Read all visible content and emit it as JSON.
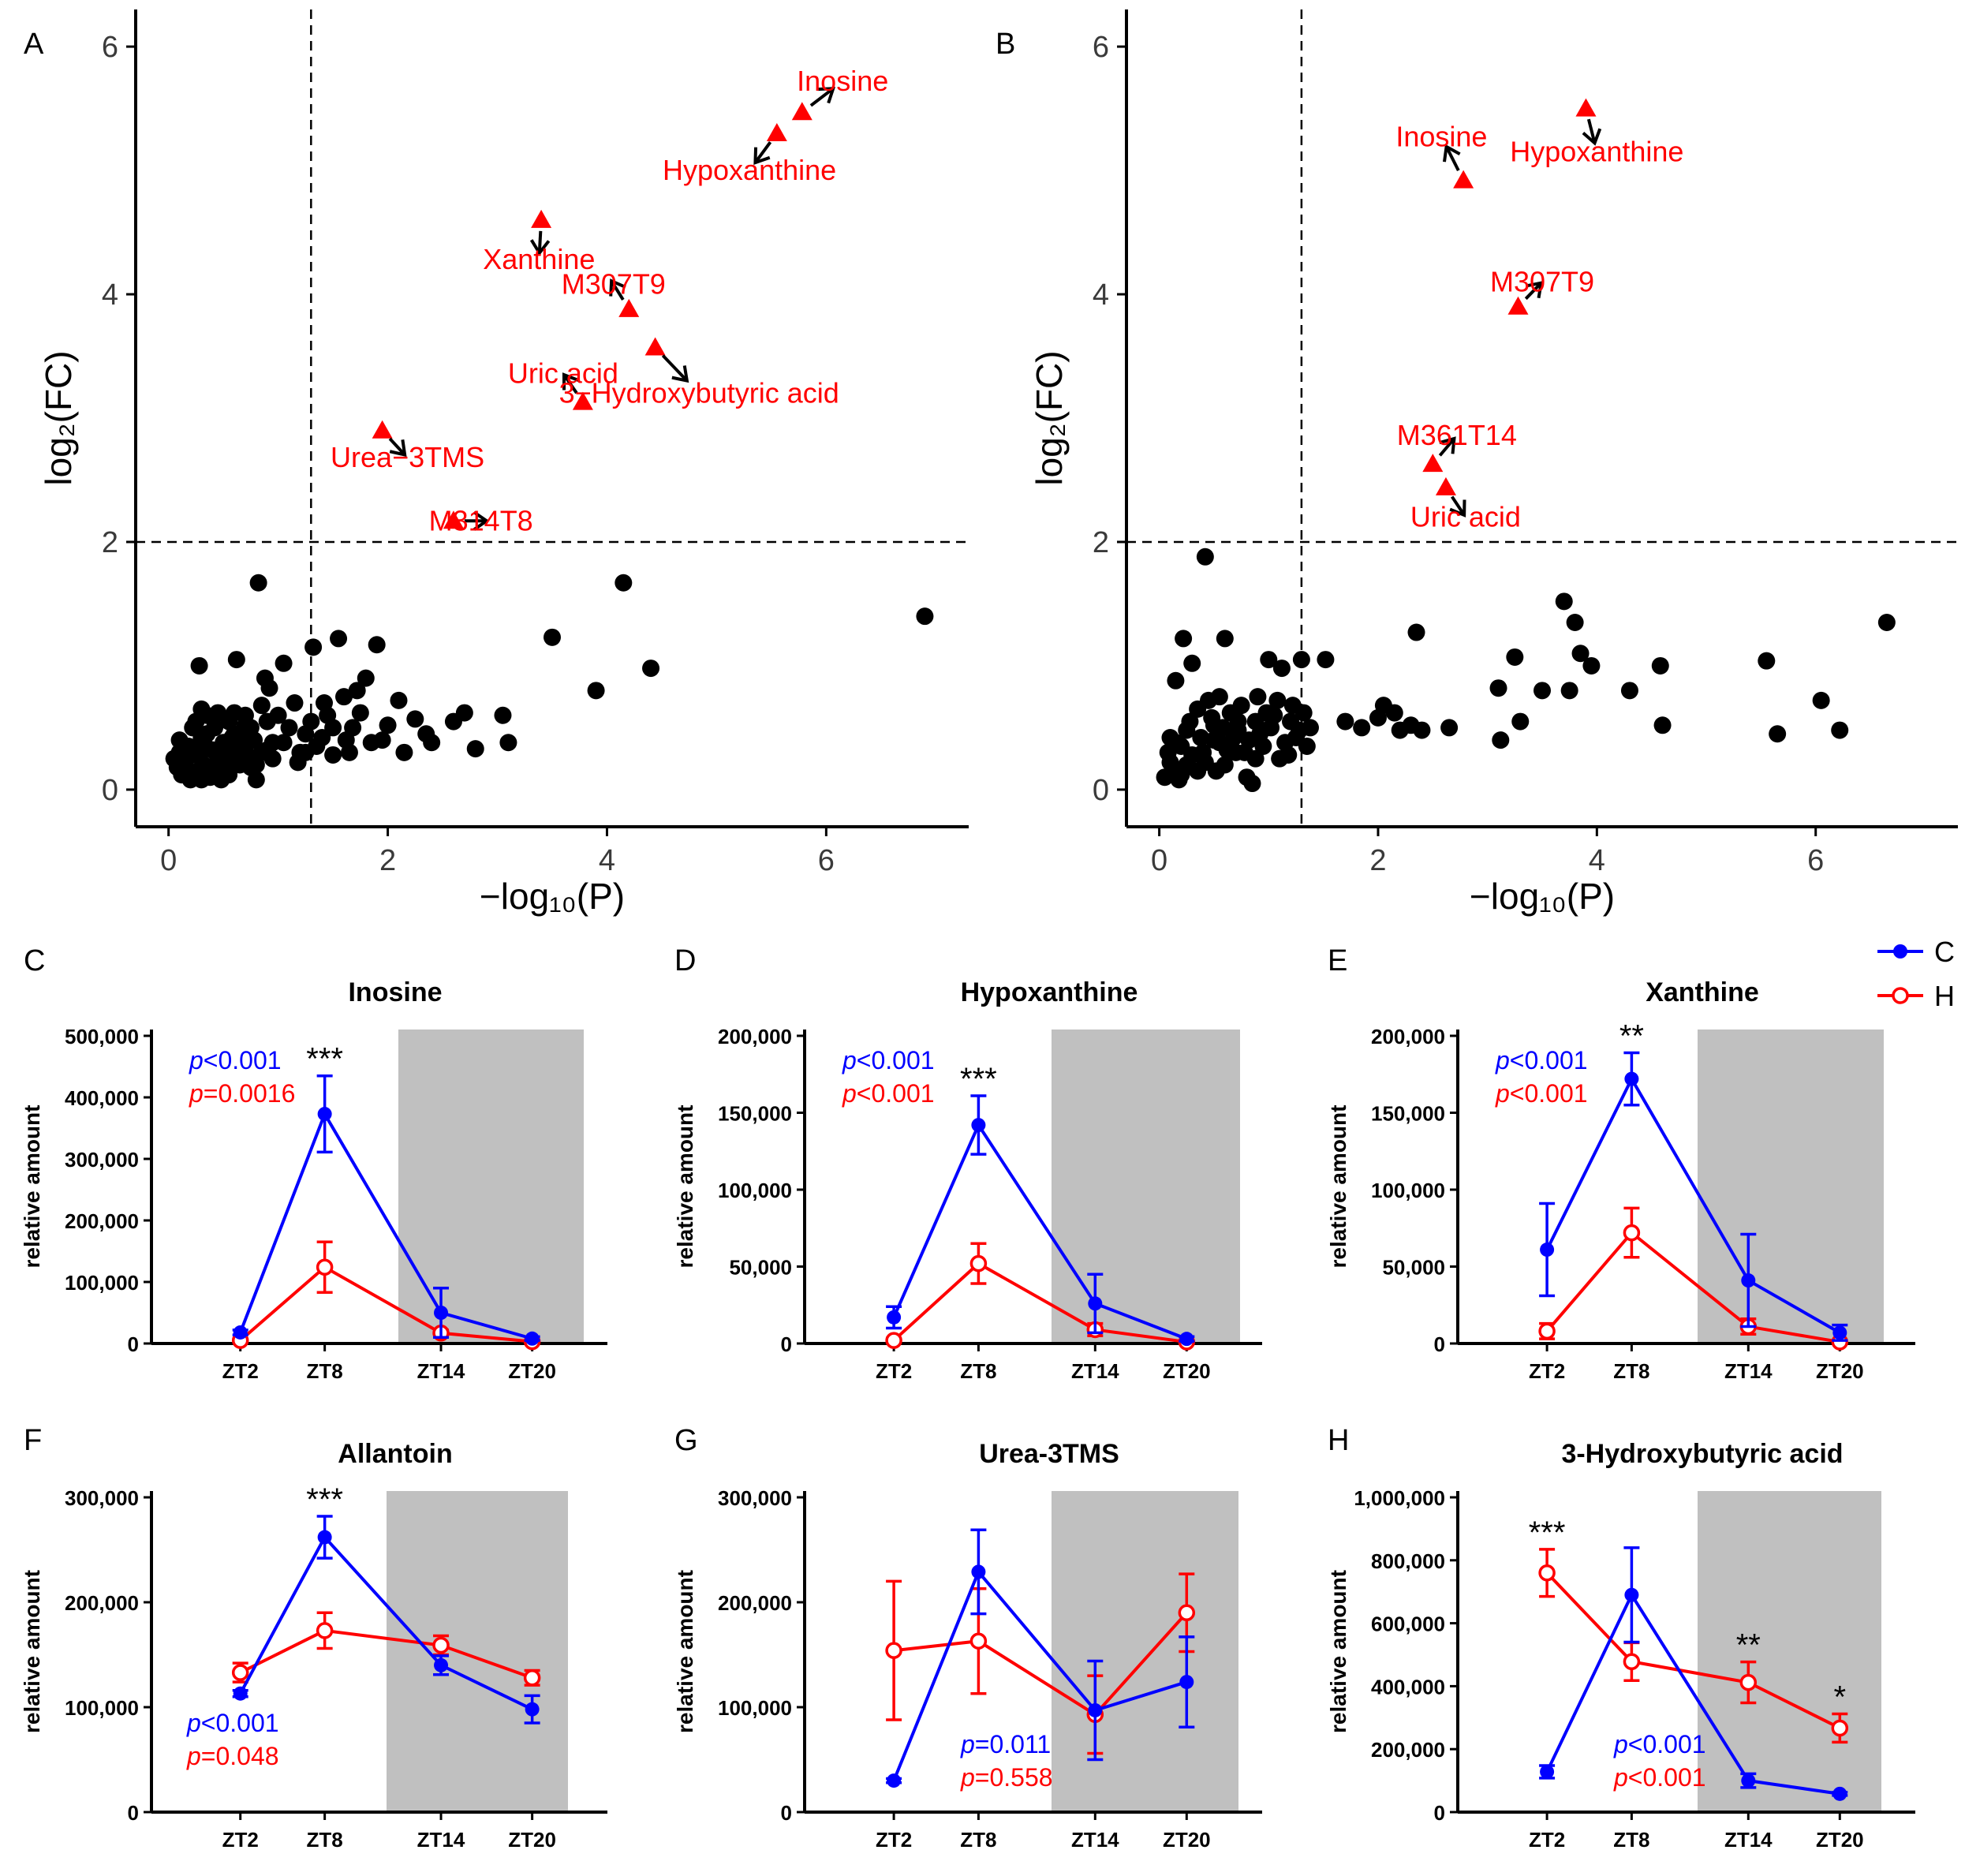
{
  "colors": {
    "C": "#0000ff",
    "H": "#ff0000",
    "point": "#000000",
    "sig": "#ff0000",
    "shade": "#c0c0c0"
  },
  "legend": {
    "entries": [
      {
        "key": "C",
        "label": "C"
      },
      {
        "key": "H",
        "label": "H"
      }
    ]
  },
  "volcano_axis": {
    "xlabel": "−log₁₀(P)",
    "ylabel": "log₂(FC)",
    "xticks": [
      "0",
      "2",
      "4",
      "6"
    ],
    "yticks": [
      "0",
      "2",
      "4",
      "6"
    ]
  },
  "chart_data": [
    {
      "panel": "A",
      "type": "scatter",
      "xlabel": "−log₁₀(P)",
      "ylabel": "log₂(FC)",
      "xlim": [
        -0.3,
        7.3
      ],
      "ylim": [
        -0.3,
        6.3
      ],
      "hline": 2,
      "vline": 1.3,
      "significant": [
        {
          "label": "Inosine",
          "x": 5.78,
          "y": 5.47,
          "lx": 6.15,
          "ly": 5.72
        },
        {
          "label": "Hypoxanthine",
          "x": 5.55,
          "y": 5.3,
          "lx": 5.3,
          "ly": 5.0
        },
        {
          "label": "Xanthine",
          "x": 3.4,
          "y": 4.6,
          "lx": 3.38,
          "ly": 4.28
        },
        {
          "label": "M307T9",
          "x": 4.2,
          "y": 3.88,
          "lx": 4.06,
          "ly": 4.08
        },
        {
          "label": "Uric acid",
          "x": 3.78,
          "y": 3.13,
          "lx": 3.6,
          "ly": 3.36
        },
        {
          "label": "3−Hydroxybutyric acid",
          "x": 4.44,
          "y": 3.57,
          "lx": 4.84,
          "ly": 3.2
        },
        {
          "label": "Urea−3TMS",
          "x": 1.95,
          "y": 2.9,
          "lx": 2.18,
          "ly": 2.68
        },
        {
          "label": "M314T8",
          "x": 2.6,
          "y": 2.17,
          "lx": 2.85,
          "ly": 2.17
        }
      ],
      "points": [
        [
          0.05,
          0.25
        ],
        [
          0.08,
          0.18
        ],
        [
          0.1,
          0.3
        ],
        [
          0.12,
          0.12
        ],
        [
          0.15,
          0.22
        ],
        [
          0.18,
          0.35
        ],
        [
          0.2,
          0.08
        ],
        [
          0.22,
          0.28
        ],
        [
          0.25,
          0.55
        ],
        [
          0.27,
          0.15
        ],
        [
          0.28,
          1.0
        ],
        [
          0.3,
          0.42
        ],
        [
          0.32,
          0.2
        ],
        [
          0.35,
          0.6
        ],
        [
          0.38,
          0.1
        ],
        [
          0.4,
          0.32
        ],
        [
          0.42,
          0.5
        ],
        [
          0.45,
          0.25
        ],
        [
          0.48,
          0.08
        ],
        [
          0.5,
          0.38
        ],
        [
          0.52,
          0.22
        ],
        [
          0.55,
          0.55
        ],
        [
          0.58,
          0.3
        ],
        [
          0.6,
          0.45
        ],
        [
          0.62,
          1.05
        ],
        [
          0.65,
          0.2
        ],
        [
          0.68,
          0.35
        ],
        [
          0.7,
          0.6
        ],
        [
          0.72,
          0.28
        ],
        [
          0.75,
          0.5
        ],
        [
          0.78,
          0.4
        ],
        [
          0.8,
          0.08
        ],
        [
          0.82,
          1.67
        ],
        [
          0.85,
          0.3
        ],
        [
          0.88,
          0.9
        ],
        [
          0.9,
          0.55
        ],
        [
          0.92,
          0.82
        ],
        [
          0.95,
          0.38
        ],
        [
          1.0,
          0.6
        ],
        [
          1.05,
          1.02
        ],
        [
          1.1,
          0.5
        ],
        [
          1.15,
          0.7
        ],
        [
          1.2,
          0.3
        ],
        [
          1.25,
          0.45
        ],
        [
          1.3,
          0.55
        ],
        [
          1.32,
          1.15
        ],
        [
          1.35,
          0.35
        ],
        [
          1.4,
          0.42
        ],
        [
          1.45,
          0.6
        ],
        [
          1.5,
          0.5
        ],
        [
          1.55,
          1.22
        ],
        [
          1.6,
          0.75
        ],
        [
          1.62,
          0.4
        ],
        [
          1.68,
          0.5
        ],
        [
          1.72,
          0.8
        ],
        [
          1.75,
          0.62
        ],
        [
          1.8,
          0.9
        ],
        [
          1.85,
          0.38
        ],
        [
          1.9,
          1.17
        ],
        [
          2.0,
          0.52
        ],
        [
          2.1,
          0.72
        ],
        [
          2.15,
          0.3
        ],
        [
          2.25,
          0.57
        ],
        [
          2.35,
          0.45
        ],
        [
          2.4,
          0.38
        ],
        [
          2.6,
          0.55
        ],
        [
          2.7,
          0.62
        ],
        [
          2.8,
          0.33
        ],
        [
          3.05,
          0.6
        ],
        [
          3.1,
          0.38
        ],
        [
          3.5,
          1.23
        ],
        [
          3.9,
          0.8
        ],
        [
          4.15,
          1.67
        ],
        [
          4.4,
          0.98
        ],
        [
          6.9,
          1.4
        ],
        [
          0.1,
          0.4
        ],
        [
          0.14,
          0.28
        ],
        [
          0.3,
          0.65
        ],
        [
          0.42,
          0.15
        ],
        [
          0.55,
          0.12
        ],
        [
          0.65,
          0.42
        ],
        [
          0.75,
          0.18
        ],
        [
          0.95,
          0.25
        ],
        [
          1.18,
          0.22
        ],
        [
          1.5,
          0.28
        ],
        [
          1.65,
          0.3
        ],
        [
          1.95,
          0.4
        ],
        [
          0.6,
          0.62
        ],
        [
          0.7,
          0.52
        ],
        [
          0.85,
          0.68
        ],
        [
          0.22,
          0.5
        ],
        [
          0.35,
          0.45
        ],
        [
          0.5,
          0.3
        ],
        [
          0.45,
          0.62
        ],
        [
          0.8,
          0.2
        ],
        [
          1.05,
          0.38
        ],
        [
          1.25,
          0.3
        ],
        [
          1.42,
          0.7
        ],
        [
          0.18,
          0.12
        ],
        [
          0.3,
          0.08
        ],
        [
          0.28,
          0.28
        ],
        [
          0.32,
          0.38
        ],
        [
          0.58,
          0.42
        ],
        [
          0.68,
          0.25
        ],
        [
          0.9,
          0.32
        ]
      ]
    },
    {
      "panel": "B",
      "type": "scatter",
      "xlabel": "−log₁₀(P)",
      "ylabel": "log₂(FC)",
      "xlim": [
        -0.3,
        7.3
      ],
      "ylim": [
        -0.3,
        6.3
      ],
      "hline": 2,
      "vline": 1.3,
      "significant": [
        {
          "label": "Hypoxanthine",
          "x": 3.9,
          "y": 5.5,
          "lx": 4.0,
          "ly": 5.15
        },
        {
          "label": "Inosine",
          "x": 2.78,
          "y": 4.92,
          "lx": 2.58,
          "ly": 5.27
        },
        {
          "label": "M307T9",
          "x": 3.28,
          "y": 3.9,
          "lx": 3.5,
          "ly": 4.1
        },
        {
          "label": "M361T14",
          "x": 2.5,
          "y": 2.63,
          "lx": 2.72,
          "ly": 2.86
        },
        {
          "label": "Uric acid",
          "x": 2.62,
          "y": 2.44,
          "lx": 2.8,
          "ly": 2.2
        }
      ],
      "points": [
        [
          0.05,
          0.1
        ],
        [
          0.08,
          0.3
        ],
        [
          0.1,
          0.42
        ],
        [
          0.12,
          0.15
        ],
        [
          0.15,
          0.88
        ],
        [
          0.18,
          0.08
        ],
        [
          0.2,
          0.35
        ],
        [
          0.22,
          1.22
        ],
        [
          0.25,
          0.2
        ],
        [
          0.28,
          0.55
        ],
        [
          0.3,
          1.02
        ],
        [
          0.35,
          0.65
        ],
        [
          0.4,
          0.3
        ],
        [
          0.42,
          1.88
        ],
        [
          0.45,
          0.72
        ],
        [
          0.5,
          0.4
        ],
        [
          0.52,
          0.15
        ],
        [
          0.55,
          0.75
        ],
        [
          0.58,
          0.5
        ],
        [
          0.6,
          1.22
        ],
        [
          0.65,
          0.62
        ],
        [
          0.7,
          0.3
        ],
        [
          0.72,
          0.55
        ],
        [
          0.75,
          0.68
        ],
        [
          0.8,
          0.1
        ],
        [
          0.82,
          0.4
        ],
        [
          0.85,
          0.05
        ],
        [
          0.88,
          0.55
        ],
        [
          0.9,
          0.75
        ],
        [
          0.95,
          0.35
        ],
        [
          1.0,
          1.05
        ],
        [
          1.02,
          0.5
        ],
        [
          1.05,
          0.6
        ],
        [
          1.1,
          0.25
        ],
        [
          1.12,
          0.98
        ],
        [
          1.15,
          0.38
        ],
        [
          1.2,
          0.55
        ],
        [
          1.25,
          0.42
        ],
        [
          1.3,
          1.05
        ],
        [
          1.32,
          0.62
        ],
        [
          1.35,
          0.35
        ],
        [
          1.38,
          0.5
        ],
        [
          1.52,
          1.05
        ],
        [
          1.7,
          0.55
        ],
        [
          1.85,
          0.5
        ],
        [
          2.0,
          0.58
        ],
        [
          2.05,
          0.68
        ],
        [
          2.15,
          0.62
        ],
        [
          2.2,
          0.48
        ],
        [
          2.3,
          0.52
        ],
        [
          2.35,
          1.27
        ],
        [
          2.4,
          0.48
        ],
        [
          2.65,
          0.5
        ],
        [
          3.1,
          0.82
        ],
        [
          3.12,
          0.4
        ],
        [
          3.25,
          1.07
        ],
        [
          3.3,
          0.55
        ],
        [
          3.5,
          0.8
        ],
        [
          3.7,
          1.52
        ],
        [
          3.75,
          0.8
        ],
        [
          3.8,
          1.35
        ],
        [
          3.85,
          1.1
        ],
        [
          3.95,
          1.0
        ],
        [
          4.3,
          0.8
        ],
        [
          4.58,
          1.0
        ],
        [
          4.6,
          0.52
        ],
        [
          5.55,
          1.04
        ],
        [
          5.65,
          0.45
        ],
        [
          6.05,
          0.72
        ],
        [
          6.22,
          0.48
        ],
        [
          6.65,
          1.35
        ],
        [
          0.1,
          0.22
        ],
        [
          0.15,
          0.38
        ],
        [
          0.2,
          0.12
        ],
        [
          0.3,
          0.28
        ],
        [
          0.38,
          0.42
        ],
        [
          0.48,
          0.58
        ],
        [
          0.6,
          0.2
        ],
        [
          0.68,
          0.42
        ],
        [
          0.78,
          0.3
        ],
        [
          0.92,
          0.45
        ],
        [
          1.08,
          0.72
        ],
        [
          1.18,
          0.28
        ],
        [
          0.55,
          0.38
        ],
        [
          0.72,
          0.48
        ],
        [
          0.88,
          0.25
        ],
        [
          1.28,
          0.48
        ],
        [
          0.35,
          0.15
        ],
        [
          0.42,
          0.22
        ],
        [
          0.62,
          0.32
        ],
        [
          0.98,
          0.62
        ],
        [
          1.22,
          0.68
        ],
        [
          0.25,
          0.48
        ],
        [
          0.5,
          0.52
        ]
      ]
    },
    {
      "panel": "C",
      "type": "line",
      "title": "Inosine",
      "ylabel": "relative amount",
      "categories": [
        "ZT2",
        "ZT8",
        "ZT14",
        "ZT20"
      ],
      "ylim": [
        0,
        500000
      ],
      "yticks": [
        "0",
        "100,000",
        "200,000",
        "300,000",
        "400,000",
        "500,000"
      ],
      "series": [
        {
          "name": "C",
          "values": [
            18000,
            373000,
            50000,
            8000
          ],
          "err": [
            4000,
            62000,
            40000,
            3000
          ]
        },
        {
          "name": "H",
          "values": [
            5000,
            124000,
            17000,
            3000
          ],
          "err": [
            2000,
            41000,
            5000,
            2000
          ]
        }
      ],
      "stats": {
        "C": "<0.001",
        "H": "=0.0016"
      },
      "stats_pos": "top-left",
      "stars": [
        {
          "cat": "ZT8",
          "text": "***"
        }
      ]
    },
    {
      "panel": "D",
      "type": "line",
      "title": "Hypoxanthine",
      "ylabel": "relative amount",
      "categories": [
        "ZT2",
        "ZT8",
        "ZT14",
        "ZT20"
      ],
      "ylim": [
        0,
        200000
      ],
      "yticks": [
        "0",
        "50,000",
        "100,000",
        "150,000",
        "200,000"
      ],
      "series": [
        {
          "name": "C",
          "values": [
            17000,
            142000,
            26000,
            3000
          ],
          "err": [
            7000,
            19000,
            19000,
            1500
          ]
        },
        {
          "name": "H",
          "values": [
            2000,
            52000,
            9000,
            1000
          ],
          "err": [
            1500,
            13000,
            4000,
            800
          ]
        }
      ],
      "stats": {
        "C": "<0.001",
        "H": "<0.001"
      },
      "stats_pos": "top-left",
      "stars": [
        {
          "cat": "ZT8",
          "text": "***"
        }
      ]
    },
    {
      "panel": "E",
      "type": "line",
      "title": "Xanthine",
      "ylabel": "relative amount",
      "categories": [
        "ZT2",
        "ZT8",
        "ZT14",
        "ZT20"
      ],
      "ylim": [
        0,
        200000
      ],
      "yticks": [
        "0",
        "50,000",
        "100,000",
        "150,000",
        "200,000"
      ],
      "series": [
        {
          "name": "C",
          "values": [
            61000,
            172000,
            41000,
            7000
          ],
          "err": [
            30000,
            17000,
            30000,
            5000
          ]
        },
        {
          "name": "H",
          "values": [
            8000,
            72000,
            11000,
            1000
          ],
          "err": [
            5000,
            16000,
            5000,
            800
          ]
        }
      ],
      "stats": {
        "C": "<0.001",
        "H": "<0.001"
      },
      "stats_pos": "top-left",
      "stars": [
        {
          "cat": "ZT8",
          "text": "**"
        }
      ]
    },
    {
      "panel": "F",
      "type": "line",
      "title": "Allantoin",
      "ylabel": "relative amount",
      "categories": [
        "ZT2",
        "ZT8",
        "ZT14",
        "ZT20"
      ],
      "ylim": [
        0,
        300000
      ],
      "yticks": [
        "0",
        "100,000",
        "200,000",
        "300,000"
      ],
      "series": [
        {
          "name": "C",
          "values": [
            113000,
            262000,
            140000,
            98000
          ],
          "err": [
            3000,
            20000,
            9000,
            13000
          ]
        },
        {
          "name": "H",
          "values": [
            133000,
            173000,
            159000,
            128000
          ],
          "err": [
            9000,
            17000,
            9000,
            7000
          ]
        }
      ],
      "stats": {
        "C": "<0.001",
        "H": "=0.048"
      },
      "stats_pos": "bottom-left",
      "stars": [
        {
          "cat": "ZT8",
          "text": "***"
        }
      ]
    },
    {
      "panel": "G",
      "type": "line",
      "title": "Urea-3TMS",
      "ylabel": "relative amount",
      "categories": [
        "ZT2",
        "ZT8",
        "ZT14",
        "ZT20"
      ],
      "ylim": [
        0,
        300000
      ],
      "yticks": [
        "0",
        "100,000",
        "200,000",
        "300,000"
      ],
      "series": [
        {
          "name": "C",
          "values": [
            30000,
            229000,
            97000,
            124000
          ],
          "err": [
            2000,
            40000,
            47000,
            43000
          ]
        },
        {
          "name": "H",
          "values": [
            154000,
            163000,
            93000,
            190000
          ],
          "err": [
            66000,
            50000,
            37000,
            37000
          ]
        }
      ],
      "stats": {
        "C": "=0.011",
        "H": "=0.558"
      },
      "stats_pos": "bottom-center",
      "stars": []
    },
    {
      "panel": "H",
      "type": "line",
      "title": "3-Hydroxybutyric acid",
      "ylabel": "relative amount",
      "categories": [
        "ZT2",
        "ZT8",
        "ZT14",
        "ZT20"
      ],
      "ylim": [
        0,
        1000000
      ],
      "yticks": [
        "0",
        "200,000",
        "400,000",
        "600,000",
        "800,000",
        "1,000,000"
      ],
      "series": [
        {
          "name": "C",
          "values": [
            128000,
            690000,
            100000,
            58000
          ],
          "err": [
            20000,
            150000,
            22000,
            5000
          ]
        },
        {
          "name": "H",
          "values": [
            760000,
            478000,
            412000,
            267000
          ],
          "err": [
            75000,
            60000,
            65000,
            45000
          ]
        }
      ],
      "stats": {
        "C": "<0.001",
        "H": "<0.001"
      },
      "stats_pos": "bottom-center",
      "stars": [
        {
          "cat": "ZT2",
          "text": "***"
        },
        {
          "cat": "ZT14",
          "text": "**"
        },
        {
          "cat": "ZT20",
          "text": "*"
        }
      ]
    }
  ]
}
